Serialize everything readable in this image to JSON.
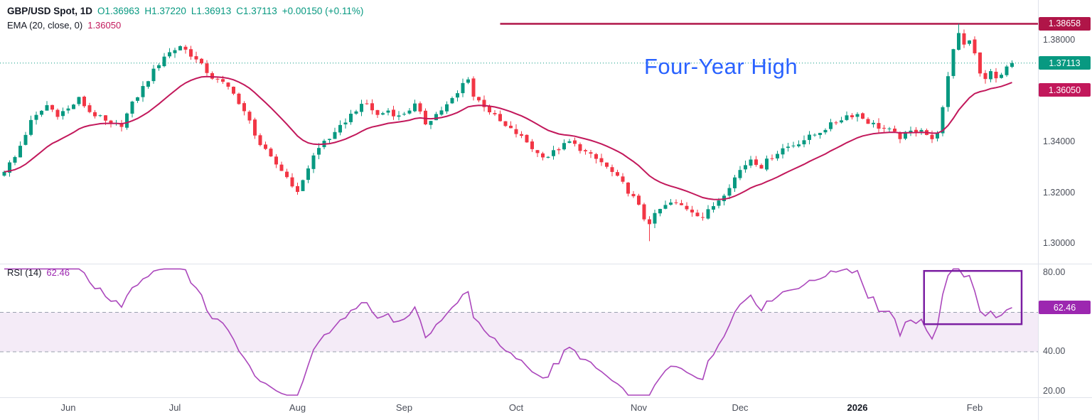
{
  "legend": {
    "title": "GBP/USD Spot, 1D",
    "open": "O1.36963",
    "high": "H1.37220",
    "low": "L1.36913",
    "close": "C1.37113",
    "change": "+0.00150 (+0.11%)",
    "ema_label": "EMA (20, close, 0)",
    "ema_value": "1.36050",
    "rsi_label": "RSI (14)",
    "rsi_value": "62.46"
  },
  "annotation": {
    "text": "Four-Year High"
  },
  "price_scale": {
    "ticks": [
      {
        "label": "1.38000",
        "value": 1.38
      },
      {
        "label": "1.34000",
        "value": 1.34
      },
      {
        "label": "1.32000",
        "value": 1.32
      },
      {
        "label": "1.30000",
        "value": 1.3
      }
    ],
    "badges": {
      "four_year_high": "1.38658",
      "last_price": "1.37113",
      "ema": "1.36050"
    }
  },
  "rsi_scale": {
    "ticks": [
      {
        "label": "80.00",
        "value": 80
      },
      {
        "label": "40.00",
        "value": 40
      },
      {
        "label": "20.00",
        "value": 20
      }
    ],
    "badge": "62.46"
  },
  "time_axis": {
    "items": [
      {
        "label": "Jun",
        "day": 12
      },
      {
        "label": "Jul",
        "day": 32
      },
      {
        "label": "Aug",
        "day": 55
      },
      {
        "label": "Sep",
        "day": 75
      },
      {
        "label": "Oct",
        "day": 96
      },
      {
        "label": "Nov",
        "day": 119
      },
      {
        "label": "Dec",
        "day": 138
      },
      {
        "label": "2026",
        "day": 160,
        "year": true
      },
      {
        "label": "Feb",
        "day": 182
      }
    ]
  },
  "colors": {
    "up": "#089981",
    "down": "#f23645",
    "ema": "#c2185b",
    "level_line": "#b01548",
    "last_price_line": "#089981",
    "rsi_line": "#ab47bc",
    "rsi_band_fill": "rgba(149,56,176,0.10)",
    "band_dash": "#9aa0ae",
    "badge_high_bg": "#b01548",
    "badge_last_bg": "#089981",
    "badge_ema_bg": "#c2185b",
    "badge_rsi_bg": "#9c27b0",
    "annotation_text": "#2962ff",
    "axis_text": "#4a4e59",
    "title_text": "#131722",
    "separator": "#e0e3eb",
    "highlight_box": "#7b1fa2"
  },
  "chart_data": {
    "type": "candlestick",
    "title": "GBP/USD Spot, 1D",
    "interval": "1D",
    "panels": [
      "price",
      "rsi"
    ],
    "legend_position": "top-left",
    "last_candle": {
      "open": 1.36963,
      "high": 1.3722,
      "low": 1.36913,
      "close": 1.37113,
      "change": 0.0015,
      "change_pct": 0.11
    },
    "levels": {
      "four_year_high": 1.38658,
      "last_price": 1.37113,
      "ema_last": 1.3605,
      "rsi_last": 62.46
    },
    "price_axis": {
      "ticks": [
        1.38,
        1.34,
        1.32,
        1.3
      ],
      "visible_range": [
        1.2925,
        1.396
      ]
    },
    "rsi_axis": {
      "ticks": [
        80,
        40,
        20
      ],
      "band_upper": 60,
      "band_lower": 40,
      "visible_range": [
        16,
        84
      ]
    },
    "ema_period": 20,
    "rsi_period": 14,
    "days_total": 190,
    "level_line_start_day": 93,
    "highlight_box": {
      "day_start": 172.5,
      "day_end": 190.8,
      "rsi_low": 54,
      "rsi_high": 81
    },
    "close_anchors": [
      [
        0,
        1.329
      ],
      [
        2,
        1.334
      ],
      [
        5,
        1.348
      ],
      [
        8,
        1.3545
      ],
      [
        10,
        1.351
      ],
      [
        12,
        1.353
      ],
      [
        14,
        1.357
      ],
      [
        16,
        1.352
      ],
      [
        18,
        1.3495
      ],
      [
        20,
        1.3465
      ],
      [
        22,
        1.347
      ],
      [
        24,
        1.355
      ],
      [
        26,
        1.3615
      ],
      [
        28,
        1.368
      ],
      [
        30,
        1.374
      ],
      [
        32,
        1.3765
      ],
      [
        33,
        1.378
      ],
      [
        35,
        1.3745
      ],
      [
        37,
        1.37
      ],
      [
        39,
        1.3655
      ],
      [
        41,
        1.363
      ],
      [
        43,
        1.36
      ],
      [
        44,
        1.355
      ],
      [
        46,
        1.348
      ],
      [
        48,
        1.339
      ],
      [
        50,
        1.3335
      ],
      [
        52,
        1.329
      ],
      [
        54,
        1.3235
      ],
      [
        55,
        1.3195
      ],
      [
        56,
        1.3255
      ],
      [
        58,
        1.3345
      ],
      [
        60,
        1.3405
      ],
      [
        62,
        1.343
      ],
      [
        64,
        1.3485
      ],
      [
        66,
        1.353
      ],
      [
        68,
        1.355
      ],
      [
        70,
        1.3505
      ],
      [
        72,
        1.3525
      ],
      [
        74,
        1.35
      ],
      [
        75,
        1.3515
      ],
      [
        77,
        1.3545
      ],
      [
        79,
        1.3475
      ],
      [
        81,
        1.351
      ],
      [
        83,
        1.3545
      ],
      [
        85,
        1.359
      ],
      [
        86,
        1.363
      ],
      [
        87,
        1.3655
      ],
      [
        88,
        1.358
      ],
      [
        90,
        1.3545
      ],
      [
        92,
        1.35
      ],
      [
        94,
        1.346
      ],
      [
        96,
        1.3435
      ],
      [
        98,
        1.34
      ],
      [
        100,
        1.3355
      ],
      [
        102,
        1.3345
      ],
      [
        104,
        1.3375
      ],
      [
        106,
        1.34
      ],
      [
        108,
        1.3375
      ],
      [
        110,
        1.3345
      ],
      [
        112,
        1.332
      ],
      [
        114,
        1.328
      ],
      [
        116,
        1.3235
      ],
      [
        118,
        1.318
      ],
      [
        119,
        1.3145
      ],
      [
        120,
        1.31
      ],
      [
        121,
        1.3085
      ],
      [
        123,
        1.3135
      ],
      [
        125,
        1.316
      ],
      [
        127,
        1.315
      ],
      [
        129,
        1.313
      ],
      [
        131,
        1.3105
      ],
      [
        133,
        1.315
      ],
      [
        135,
        1.32
      ],
      [
        137,
        1.326
      ],
      [
        138,
        1.329
      ],
      [
        140,
        1.3335
      ],
      [
        142,
        1.3305
      ],
      [
        144,
        1.3345
      ],
      [
        146,
        1.3375
      ],
      [
        148,
        1.339
      ],
      [
        150,
        1.341
      ],
      [
        152,
        1.343
      ],
      [
        154,
        1.3455
      ],
      [
        156,
        1.348
      ],
      [
        158,
        1.3505
      ],
      [
        160,
        1.351
      ],
      [
        162,
        1.348
      ],
      [
        164,
        1.346
      ],
      [
        166,
        1.3445
      ],
      [
        168,
        1.342
      ],
      [
        170,
        1.344
      ],
      [
        172,
        1.3455
      ],
      [
        174,
        1.3405
      ],
      [
        175,
        1.3445
      ],
      [
        176,
        1.353
      ],
      [
        177,
        1.365
      ],
      [
        178,
        1.377
      ],
      [
        179,
        1.383
      ],
      [
        180,
        1.379
      ],
      [
        181,
        1.3805
      ],
      [
        182,
        1.3755
      ],
      [
        183,
        1.3665
      ],
      [
        184,
        1.3645
      ],
      [
        185,
        1.3685
      ],
      [
        186,
        1.3645
      ],
      [
        187,
        1.3665
      ],
      [
        188,
        1.3695
      ],
      [
        189,
        1.37113
      ]
    ],
    "candle_overrides": {
      "121": {
        "low": 1.301
      },
      "179": {
        "high": 1.38658
      },
      "189": {
        "open": 1.36963,
        "high": 1.3722,
        "low": 1.36913,
        "close": 1.37113
      }
    }
  }
}
